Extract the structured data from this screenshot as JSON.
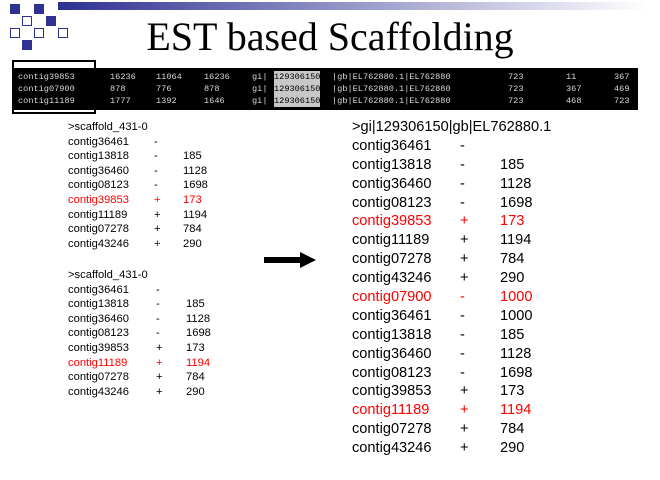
{
  "slide": {
    "title": "EST based Scaffolding",
    "accent_color": "#2e3192"
  },
  "blast_table": {
    "rows": [
      [
        "contig39853",
        "16236",
        "11064",
        "16236",
        "gi|",
        "129306150",
        "|gb|EL762880.1|EL762880",
        "723",
        "11",
        "367"
      ],
      [
        "contig07900",
        "878",
        "776",
        "878",
        "gi|",
        "129306150",
        "|gb|EL762880.1|EL762880",
        "723",
        "367",
        "469"
      ],
      [
        "contig11189",
        "1777",
        "1392",
        "1646",
        "gi|",
        "129306150",
        "|gb|EL762880.1|EL762880",
        "723",
        "468",
        "723"
      ]
    ]
  },
  "left_scaffold_1": {
    "header": ">scaffold_431-0",
    "entries": [
      {
        "contig": "contig36461",
        "strand": "-",
        "value": "",
        "highlight": false
      },
      {
        "contig": "contig13818",
        "strand": "-",
        "value": "185",
        "highlight": false
      },
      {
        "contig": "contig36460",
        "strand": "-",
        "value": "1128",
        "highlight": false
      },
      {
        "contig": "contig08123",
        "strand": "-",
        "value": "1698",
        "highlight": false
      },
      {
        "contig": "contig39853",
        "strand": "+",
        "value": "173",
        "highlight": true
      },
      {
        "contig": "contig11189",
        "strand": "+",
        "value": "1194",
        "highlight": false
      },
      {
        "contig": "contig07278",
        "strand": "+",
        "value": "784",
        "highlight": false
      },
      {
        "contig": "contig43246",
        "strand": "+",
        "value": "290",
        "highlight": false
      }
    ]
  },
  "left_scaffold_2": {
    "header": ">scaffold_431-0",
    "entries": [
      {
        "contig": "contig36461",
        "strand": "-",
        "value": "",
        "highlight": false
      },
      {
        "contig": "contig13818",
        "strand": "-",
        "value": "185",
        "highlight": false
      },
      {
        "contig": "contig36460",
        "strand": "-",
        "value": "1128",
        "highlight": false
      },
      {
        "contig": "contig08123",
        "strand": "-",
        "value": "1698",
        "highlight": false
      },
      {
        "contig": "contig39853",
        "strand": "+",
        "value": "173",
        "highlight": false
      },
      {
        "contig": "contig11189",
        "strand": "+",
        "value": "1194",
        "highlight": true
      },
      {
        "contig": "contig07278",
        "strand": "+",
        "value": "784",
        "highlight": false
      },
      {
        "contig": "contig43246",
        "strand": "+",
        "value": "290",
        "highlight": false
      }
    ]
  },
  "right_scaffold": {
    "header": ">gi|129306150|gb|EL762880.1",
    "entries": [
      {
        "contig": "contig36461",
        "strand": "-",
        "value": "",
        "highlight": false
      },
      {
        "contig": "contig13818",
        "strand": "-",
        "value": "185",
        "highlight": false
      },
      {
        "contig": "contig36460",
        "strand": "-",
        "value": "1128",
        "highlight": false
      },
      {
        "contig": "contig08123",
        "strand": "-",
        "value": "1698",
        "highlight": false
      },
      {
        "contig": "contig39853",
        "strand": "+",
        "value": "173",
        "highlight": true
      },
      {
        "contig": "contig11189",
        "strand": "+",
        "value": "1194",
        "highlight": false
      },
      {
        "contig": "contig07278",
        "strand": "+",
        "value": "784",
        "highlight": false
      },
      {
        "contig": "contig43246",
        "strand": "+",
        "value": "290",
        "highlight": false
      },
      {
        "contig": "contig07900",
        "strand": "-",
        "value": "1000",
        "highlight": true
      },
      {
        "contig": "contig36461",
        "strand": "-",
        "value": "1000",
        "highlight": false
      },
      {
        "contig": "contig13818",
        "strand": "-",
        "value": "185",
        "highlight": false
      },
      {
        "contig": "contig36460",
        "strand": "-",
        "value": "1128",
        "highlight": false
      },
      {
        "contig": "contig08123",
        "strand": "-",
        "value": "1698",
        "highlight": false
      },
      {
        "contig": "contig39853",
        "strand": "+",
        "value": "173",
        "highlight": false
      },
      {
        "contig": "contig11189",
        "strand": "+",
        "value": "1194",
        "highlight": true
      },
      {
        "contig": "contig07278",
        "strand": "+",
        "value": "784",
        "highlight": false
      },
      {
        "contig": "contig43246",
        "strand": "+",
        "value": "290",
        "highlight": false
      }
    ]
  }
}
